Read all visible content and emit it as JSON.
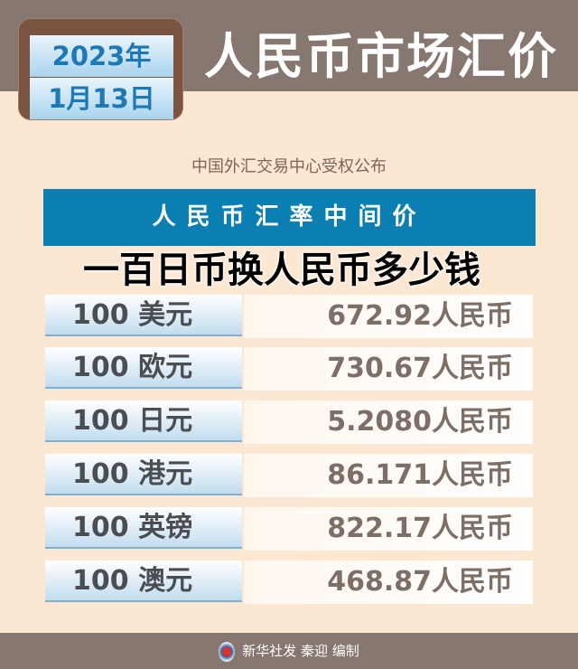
{
  "header": {
    "year": "2023年",
    "day": "1月13日",
    "title": "人民币市场汇价"
  },
  "subtitle": "中国外汇交易中心受权公布",
  "section_title": "人民币汇率中间价",
  "rates": [
    {
      "currency": "100 美元",
      "value": "672.92人民币"
    },
    {
      "currency": "100 欧元",
      "value": "730.67人民币"
    },
    {
      "currency": "100 日元",
      "value": "5.2080人民币"
    },
    {
      "currency": "100 港元",
      "value": "86.171人民币"
    },
    {
      "currency": "100 英镑",
      "value": "822.17人民币"
    },
    {
      "currency": "100 澳元",
      "value": "468.87人民币"
    }
  ],
  "overlay_title": "一百日币换人民币多少钱",
  "footer": {
    "logo_icon": "xinhua-logo-icon",
    "credit": "新华社发 秦迎 编制"
  },
  "colors": {
    "header": "#867770",
    "accent_blue": "#0b7fb1",
    "background": "#fce8d2"
  }
}
